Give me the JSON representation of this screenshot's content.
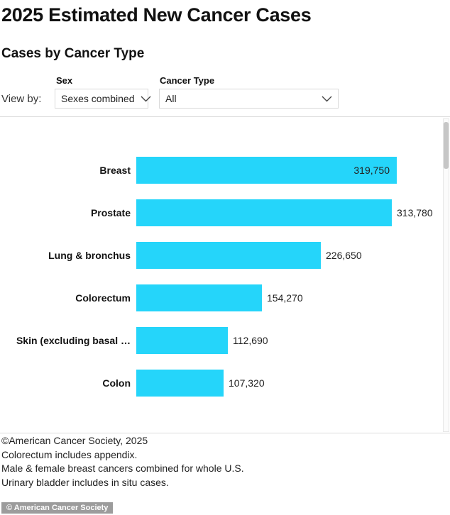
{
  "page": {
    "title": "2025 Estimated New Cancer Cases",
    "subtitle": "Cases by Cancer Type"
  },
  "controls": {
    "view_by_label": "View by:",
    "sex_filter": {
      "label": "Sex",
      "selected_value": "Sexes combined"
    },
    "cancer_type_filter": {
      "label": "Cancer Type",
      "selected_value": "All"
    }
  },
  "chart_data": {
    "type": "bar",
    "orientation": "horizontal",
    "title": "2025 Estimated New Cancer Cases",
    "subtitle": "Cases by Cancer Type",
    "xlabel": "",
    "ylabel": "",
    "grid": false,
    "legend": false,
    "axes_hidden": true,
    "xlim": [
      0,
      319750
    ],
    "bar_color": "#25d5fa",
    "categories": [
      "Breast",
      "Prostate",
      "Lung & bronchus",
      "Colorectum",
      "Skin (excluding basal …",
      "Colon"
    ],
    "values": [
      319750,
      313780,
      226650,
      154270,
      112690,
      107320
    ],
    "formatted_values": [
      "319,750",
      "313,780",
      "226,650",
      "154,270",
      "112,690",
      "107,320"
    ],
    "value_label_inside": [
      true,
      false,
      false,
      false,
      false,
      false
    ]
  },
  "footer": {
    "lines": [
      "©American Cancer Society, 2025",
      "Colorectum includes appendix.",
      "Male & female breast cancers combined for whole U.S.",
      "Urinary bladder includes in situ cases."
    ]
  },
  "badge": {
    "text": "© American Cancer Society"
  },
  "icons": {
    "chevron_color": "#444"
  }
}
